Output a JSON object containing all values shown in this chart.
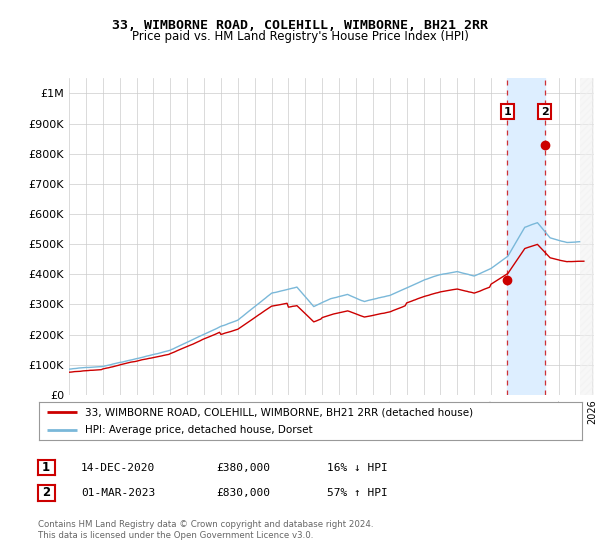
{
  "title": "33, WIMBORNE ROAD, COLEHILL, WIMBORNE, BH21 2RR",
  "subtitle": "Price paid vs. HM Land Registry's House Price Index (HPI)",
  "ylim": [
    0,
    1050000
  ],
  "yticks": [
    0,
    100000,
    200000,
    300000,
    400000,
    500000,
    600000,
    700000,
    800000,
    900000,
    1000000
  ],
  "ytick_labels": [
    "£0",
    "£100K",
    "£200K",
    "£300K",
    "£400K",
    "£500K",
    "£600K",
    "£700K",
    "£800K",
    "£900K",
    "£1M"
  ],
  "hpi_color": "#7ab8d9",
  "price_color": "#cc0000",
  "background_color": "#ffffff",
  "grid_color": "#cccccc",
  "chart_bg": "#ffffff",
  "transaction1_date": 2020.96,
  "transaction1_value": 380000,
  "transaction2_date": 2023.17,
  "transaction2_value": 830000,
  "shade_color": "#ddeeff",
  "legend_label_price": "33, WIMBORNE ROAD, COLEHILL, WIMBORNE, BH21 2RR (detached house)",
  "legend_label_hpi": "HPI: Average price, detached house, Dorset",
  "footer1": "Contains HM Land Registry data © Crown copyright and database right 2024.",
  "footer2": "This data is licensed under the Open Government Licence v3.0.",
  "table_row1": [
    "1",
    "14-DEC-2020",
    "£380,000",
    "16% ↓ HPI"
  ],
  "table_row2": [
    "2",
    "01-MAR-2023",
    "£830,000",
    "57% ↑ HPI"
  ],
  "xlim_start": 1995,
  "xlim_end": 2026
}
